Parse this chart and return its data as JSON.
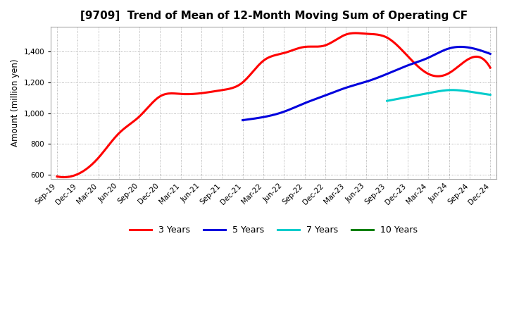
{
  "title": "[9709]  Trend of Mean of 12-Month Moving Sum of Operating CF",
  "ylabel": "Amount (million yen)",
  "ylim": [
    575,
    1560
  ],
  "yticks": [
    600,
    800,
    1000,
    1200,
    1400
  ],
  "background_color": "#ffffff",
  "x_labels": [
    "Sep-19",
    "Dec-19",
    "Mar-20",
    "Jun-20",
    "Sep-20",
    "Dec-20",
    "Mar-21",
    "Jun-21",
    "Sep-21",
    "Dec-21",
    "Mar-22",
    "Jun-22",
    "Sep-22",
    "Dec-22",
    "Mar-23",
    "Jun-23",
    "Sep-23",
    "Dec-23",
    "Mar-24",
    "Jun-24",
    "Sep-24",
    "Dec-24"
  ],
  "series_3y": {
    "color": "#ff0000",
    "label": "3 Years",
    "x_indices": [
      0,
      1,
      2,
      3,
      4,
      5,
      6,
      7,
      8,
      9,
      10,
      11,
      12,
      13,
      14,
      15,
      16,
      17,
      18,
      19,
      20,
      21
    ],
    "values": [
      590,
      605,
      710,
      870,
      980,
      1110,
      1125,
      1130,
      1150,
      1200,
      1340,
      1390,
      1430,
      1440,
      1510,
      1515,
      1490,
      1370,
      1255,
      1260,
      1355,
      1295
    ]
  },
  "series_5y": {
    "color": "#0000dd",
    "label": "5 Years",
    "x_indices": [
      9,
      10,
      11,
      12,
      13,
      14,
      15,
      16,
      17,
      18,
      19,
      20,
      21
    ],
    "values": [
      955,
      975,
      1010,
      1065,
      1115,
      1165,
      1205,
      1255,
      1310,
      1360,
      1420,
      1425,
      1385
    ]
  },
  "series_7y": {
    "color": "#00cccc",
    "label": "7 Years",
    "x_indices": [
      16,
      17,
      18,
      19,
      20,
      21
    ],
    "values": [
      1080,
      1105,
      1130,
      1150,
      1140,
      1120
    ]
  },
  "series_10y": {
    "color": "#008000",
    "label": "10 Years",
    "x_indices": [],
    "values": []
  }
}
